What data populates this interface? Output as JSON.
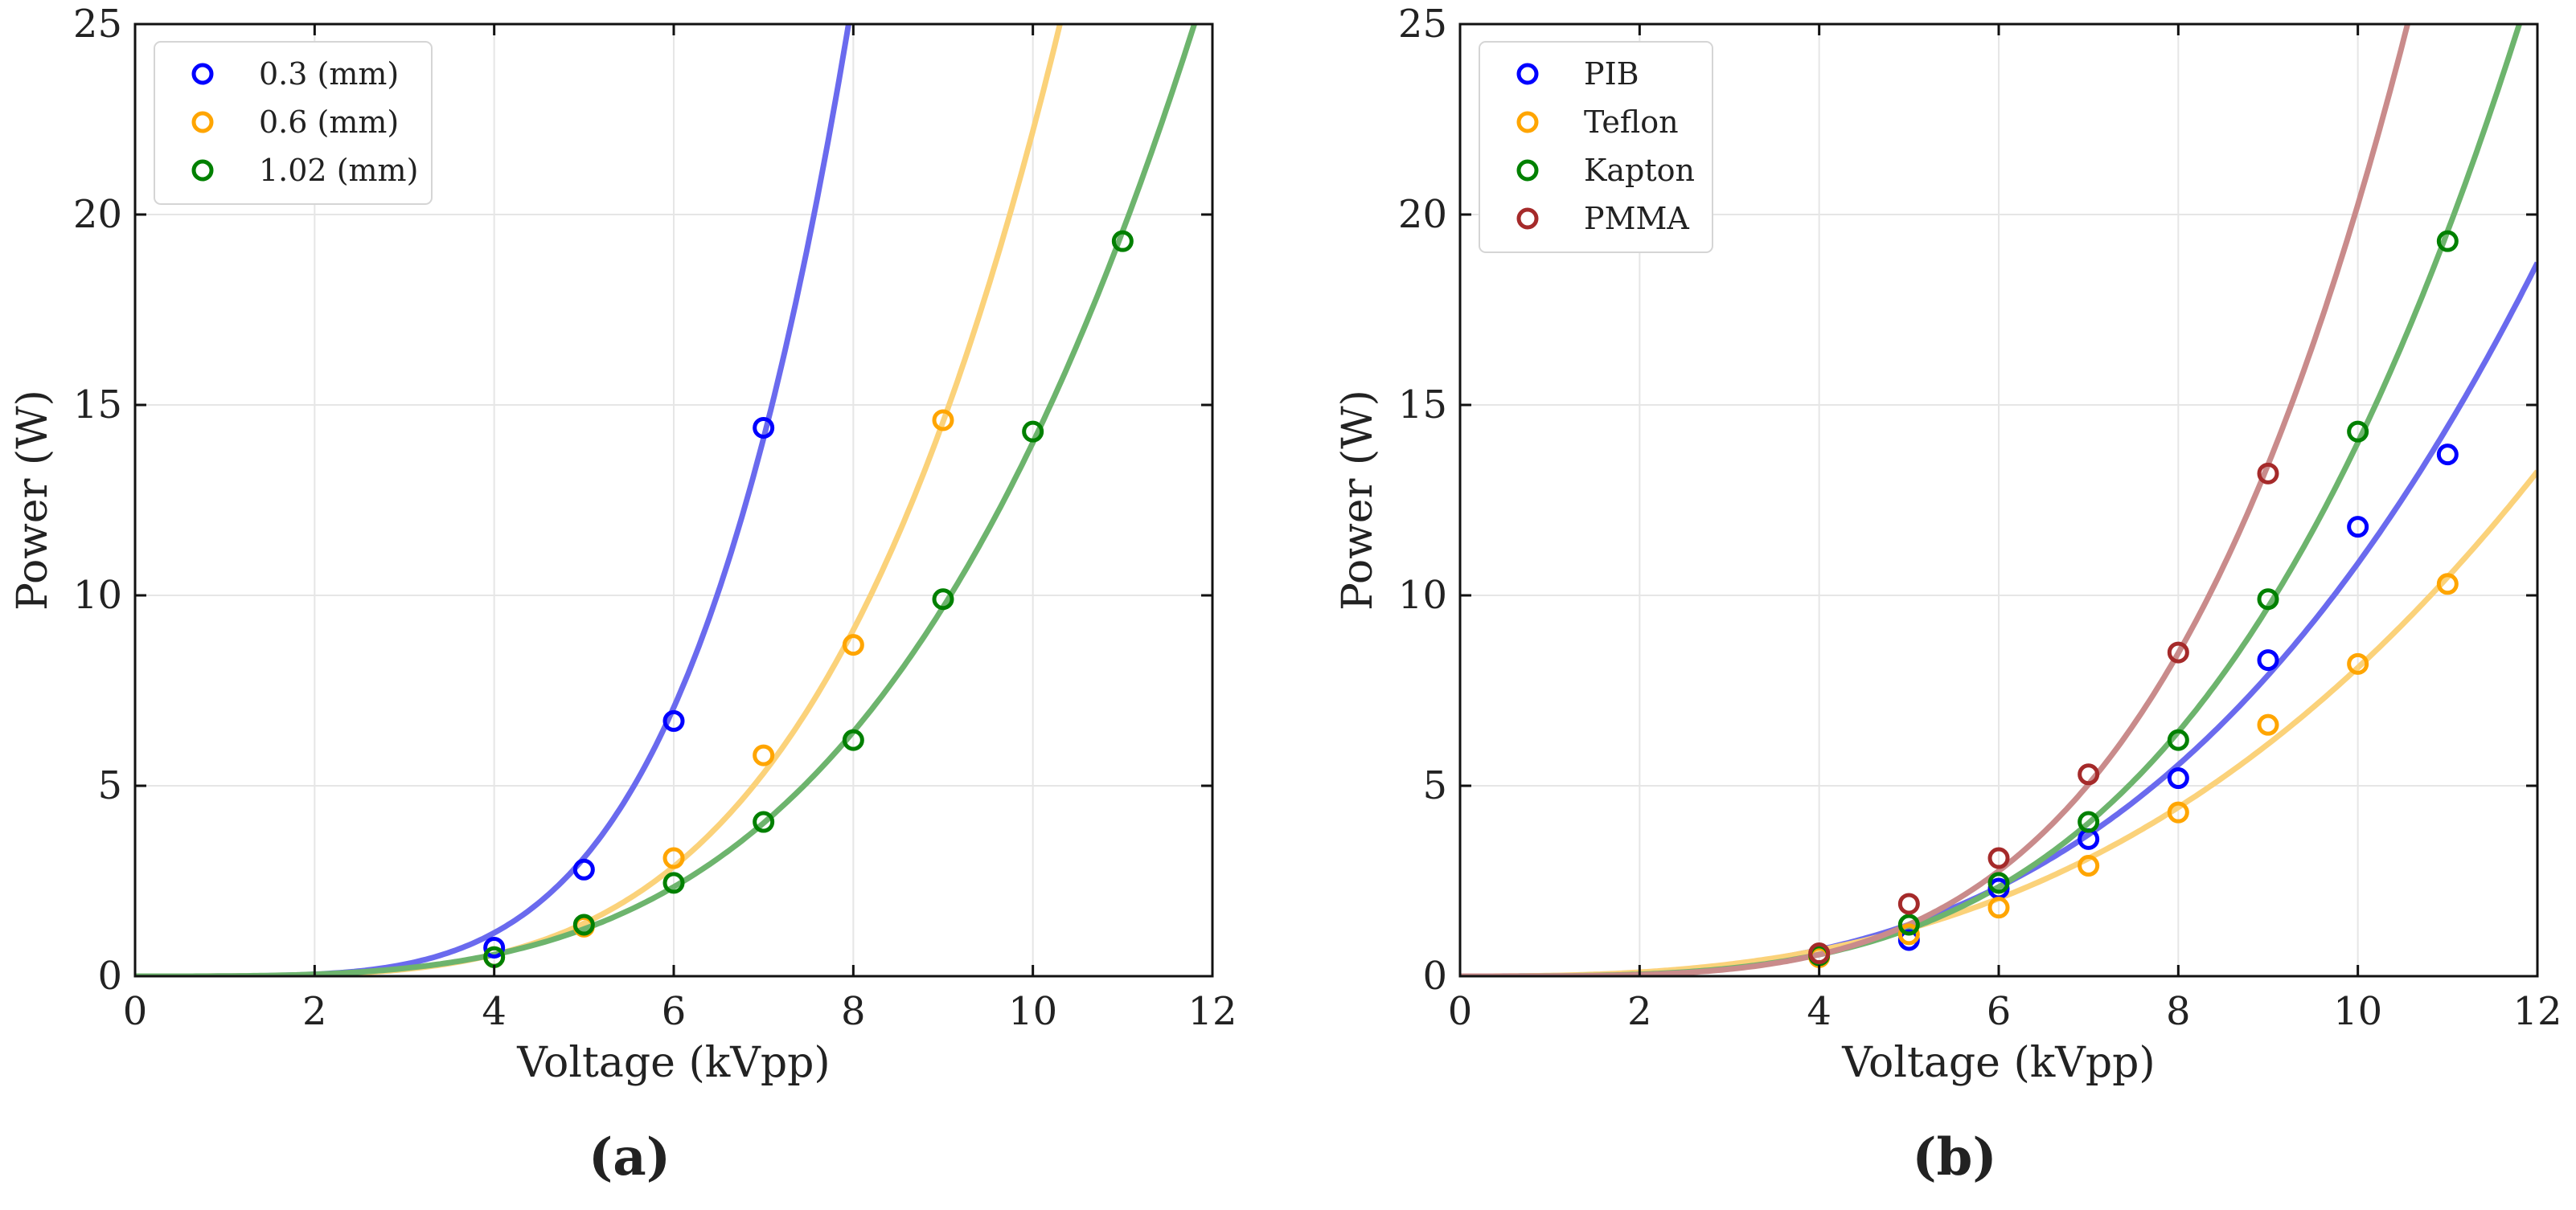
{
  "chart_data": [
    {
      "panel": "(a)",
      "type": "scatter",
      "xlabel": "Voltage (kVpp)",
      "ylabel": "Power (W)",
      "xlim": [
        0,
        12
      ],
      "ylim": [
        0,
        25
      ],
      "xticks": [
        0,
        2,
        4,
        6,
        8,
        10,
        12
      ],
      "yticks": [
        0,
        5,
        10,
        15,
        20,
        25
      ],
      "grid": true,
      "legend": "top-left",
      "series": [
        {
          "name": "0.3 (mm)",
          "color": "#0000ff",
          "fit_color": "#6a6aee",
          "x": [
            4,
            5,
            6,
            7
          ],
          "y": [
            0.75,
            2.8,
            6.7,
            14.4
          ],
          "fit_exponent": 4.5
        },
        {
          "name": "0.6 (mm)",
          "color": "#ffa500",
          "fit_color": "#fbd27a",
          "x": [
            4,
            5,
            6,
            7,
            8,
            9
          ],
          "y": [
            0.5,
            1.3,
            3.1,
            5.8,
            8.7,
            14.6
          ],
          "fit_exponent": 4.0
        },
        {
          "name": "1.02 (mm)",
          "color": "#008000",
          "fit_color": "#6db46d",
          "x": [
            4,
            5,
            6,
            7,
            8,
            9,
            10,
            11
          ],
          "y": [
            0.5,
            1.35,
            2.45,
            4.05,
            6.2,
            9.9,
            14.3,
            19.3
          ],
          "fit_exponent": 3.5
        }
      ]
    },
    {
      "panel": "(b)",
      "type": "scatter",
      "xlabel": "Voltage (kVpp)",
      "ylabel": "Power (W)",
      "xlim": [
        0,
        12
      ],
      "ylim": [
        0,
        25
      ],
      "xticks": [
        0,
        2,
        4,
        6,
        8,
        10,
        12
      ],
      "yticks": [
        0,
        5,
        10,
        15,
        20,
        25
      ],
      "grid": true,
      "legend": "top-left",
      "series": [
        {
          "name": "PIB",
          "color": "#0000ff",
          "fit_color": "#6a6aee",
          "x": [
            5,
            6,
            7,
            8,
            9,
            10,
            11
          ],
          "y": [
            0.95,
            2.3,
            3.6,
            5.2,
            8.3,
            11.8,
            13.7
          ],
          "fit_exponent": 3.0
        },
        {
          "name": "Teflon",
          "color": "#ffa500",
          "fit_color": "#fbd27a",
          "x": [
            4,
            5,
            6,
            7,
            8,
            9,
            10,
            11
          ],
          "y": [
            0.5,
            1.1,
            1.8,
            2.9,
            4.3,
            6.6,
            8.2,
            10.3
          ],
          "fit_exponent": 2.7
        },
        {
          "name": "Kapton",
          "color": "#008000",
          "fit_color": "#6db46d",
          "x": [
            4,
            5,
            6,
            7,
            8,
            9,
            10,
            11
          ],
          "y": [
            0.55,
            1.35,
            2.45,
            4.05,
            6.2,
            9.9,
            14.3,
            19.3
          ],
          "fit_exponent": 3.5
        },
        {
          "name": "PMMA",
          "color": "#a52a2a",
          "fit_color": "#c98b8b",
          "x": [
            4,
            5,
            6,
            7,
            8,
            9
          ],
          "y": [
            0.6,
            1.9,
            3.1,
            5.3,
            8.5,
            13.2
          ],
          "fit_exponent": 3.9
        }
      ]
    }
  ]
}
